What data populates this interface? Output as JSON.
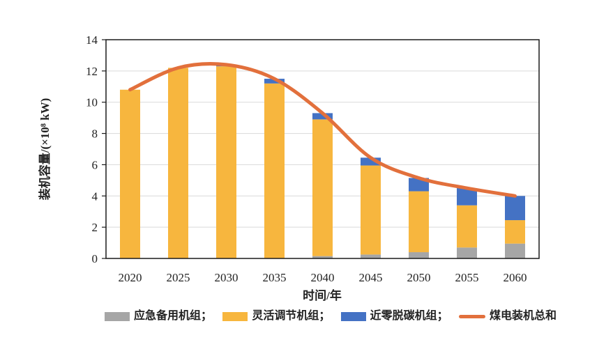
{
  "chart_data": {
    "type": "bar",
    "subtype": "stacked-bar-with-line",
    "categories": [
      "2020",
      "2025",
      "2030",
      "2035",
      "2040",
      "2045",
      "2050",
      "2055",
      "2060"
    ],
    "series": [
      {
        "name": "应急备用机组",
        "color": "#A6A6A6",
        "values": [
          0,
          0,
          0,
          0,
          0.15,
          0.25,
          0.4,
          0.7,
          0.95
        ]
      },
      {
        "name": "灵活调节机组",
        "color": "#F7B63E",
        "values": [
          10.8,
          12.2,
          12.3,
          11.2,
          8.75,
          5.7,
          3.9,
          2.7,
          1.5
        ]
      },
      {
        "name": "近零脱碳机组",
        "color": "#4472C4",
        "values": [
          0,
          0,
          0.1,
          0.3,
          0.4,
          0.5,
          0.85,
          1.1,
          1.55
        ]
      }
    ],
    "line_series": {
      "name": "煤电装机总和",
      "color": "#E2703C",
      "values": [
        10.8,
        12.2,
        12.4,
        11.5,
        9.3,
        6.45,
        5.15,
        4.5,
        4.0
      ]
    },
    "xlabel": "时间/年",
    "ylabel": "装机容量/(×10⁸ kW)",
    "ylim": [
      0,
      14
    ],
    "yticks": [
      0,
      2,
      4,
      6,
      8,
      10,
      12,
      14
    ],
    "grid": true,
    "grid_color": "#D9D9D9",
    "axis_color": "#1A1A1A",
    "legend_position": "bottom",
    "legend": [
      {
        "label": "应急备用机组；",
        "swatch": "rect",
        "color": "#A6A6A6"
      },
      {
        "label": "灵活调节机组；",
        "swatch": "rect",
        "color": "#F7B63E"
      },
      {
        "label": "近零脱碳机组；",
        "swatch": "rect",
        "color": "#4472C4"
      },
      {
        "label": "煤电装机总和",
        "swatch": "line",
        "color": "#E2703C"
      }
    ]
  }
}
